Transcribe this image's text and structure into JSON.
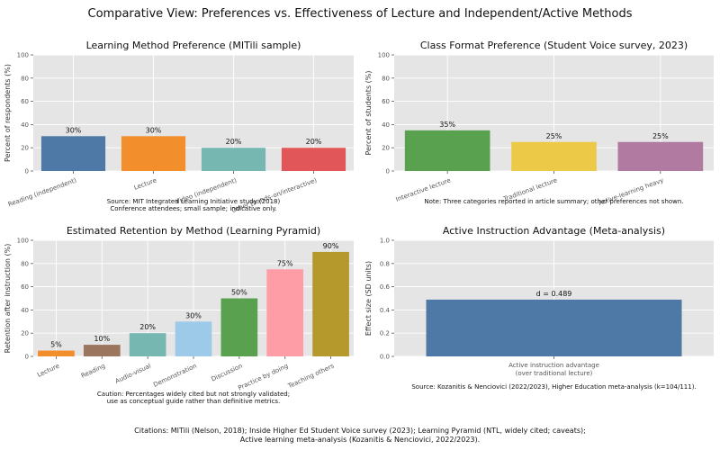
{
  "figure": {
    "suptitle": "Comparative View: Preferences vs. Effectiveness of Lecture and Independent/Active Methods",
    "citations_line1": "Citations: MITili (Nelson, 2018); Inside Higher Ed Student Voice survey (2023); Learning Pyramid (NTL, widely cited; caveats);",
    "citations_line2": "Active learning meta-analysis (Kozanitis & Nenciovici, 2022/2023)."
  },
  "chart_data": [
    {
      "id": "pref",
      "type": "bar",
      "title": "Learning Method Preference (MITili sample)",
      "xlabel": "",
      "ylabel": "Percent of respondents (%)",
      "ylim": [
        0,
        100
      ],
      "yticks": [
        0,
        20,
        40,
        60,
        80,
        100
      ],
      "grid": true,
      "categories": [
        "Reading (independent)",
        "Lecture",
        "Video (independent)",
        "Other (hands-on/interactive)"
      ],
      "values": [
        30,
        30,
        20,
        20
      ],
      "value_labels": [
        "30%",
        "30%",
        "20%",
        "20%"
      ],
      "colors": [
        "#4e79a7",
        "#f28e2b",
        "#76b7b2",
        "#e15759"
      ],
      "notes": [
        "Source: MIT Integrated Learning Initiative study (2018)",
        "Conference attendees; small sample; indicative only."
      ]
    },
    {
      "id": "format",
      "type": "bar",
      "title": "Class Format Preference (Student Voice survey, 2023)",
      "xlabel": "",
      "ylabel": "Percent of students (%)",
      "ylim": [
        0,
        100
      ],
      "yticks": [
        0,
        20,
        40,
        60,
        80,
        100
      ],
      "grid": true,
      "categories": [
        "Interactive lecture",
        "Traditional lecture",
        "Active-learning heavy"
      ],
      "values": [
        35,
        25,
        25
      ],
      "value_labels": [
        "35%",
        "25%",
        "25%"
      ],
      "colors": [
        "#59a14f",
        "#edc948",
        "#b07aa1"
      ],
      "notes": [
        "Note: Three categories reported in article summary; other preferences not shown."
      ]
    },
    {
      "id": "retention",
      "type": "bar",
      "title": "Estimated Retention by Method (Learning Pyramid)",
      "xlabel": "",
      "ylabel": "Retention after instruction (%)",
      "ylim": [
        0,
        100
      ],
      "yticks": [
        0,
        20,
        40,
        60,
        80,
        100
      ],
      "grid": true,
      "categories": [
        "Lecture",
        "Reading",
        "Audio-visual",
        "Demonstration",
        "Discussion",
        "Practice by doing",
        "Teaching others"
      ],
      "values": [
        5,
        10,
        20,
        30,
        50,
        75,
        90
      ],
      "value_labels": [
        "5%",
        "10%",
        "20%",
        "30%",
        "50%",
        "75%",
        "90%"
      ],
      "colors": [
        "#f28e2b",
        "#9c755f",
        "#76b7b2",
        "#9ecae9",
        "#59a14f",
        "#ff9da7",
        "#b6992d"
      ],
      "notes": [
        "Caution: Percentages widely cited but not strongly validated;",
        "use as conceptual guide rather than definitive metrics."
      ]
    },
    {
      "id": "meta",
      "type": "bar",
      "title": "Active Instruction Advantage (Meta-analysis)",
      "xlabel": "",
      "ylabel": "Effect size (SD units)",
      "ylim": [
        0,
        1.0
      ],
      "yticks": [
        0.0,
        0.2,
        0.4,
        0.6,
        0.8,
        1.0
      ],
      "ytick_labels": [
        "0.0",
        "0.2",
        "0.4",
        "0.6",
        "0.8",
        "1.0"
      ],
      "grid": true,
      "categories": [
        "Active instruction advantage\n(over traditional lecture)"
      ],
      "values": [
        0.489
      ],
      "value_labels": [
        "d = 0.489"
      ],
      "colors": [
        "#4e79a7"
      ],
      "notes": [
        "Source: Kozanitis & Nenciovici (2022/2023), Higher Education meta-analysis (k=104/111)."
      ]
    }
  ]
}
